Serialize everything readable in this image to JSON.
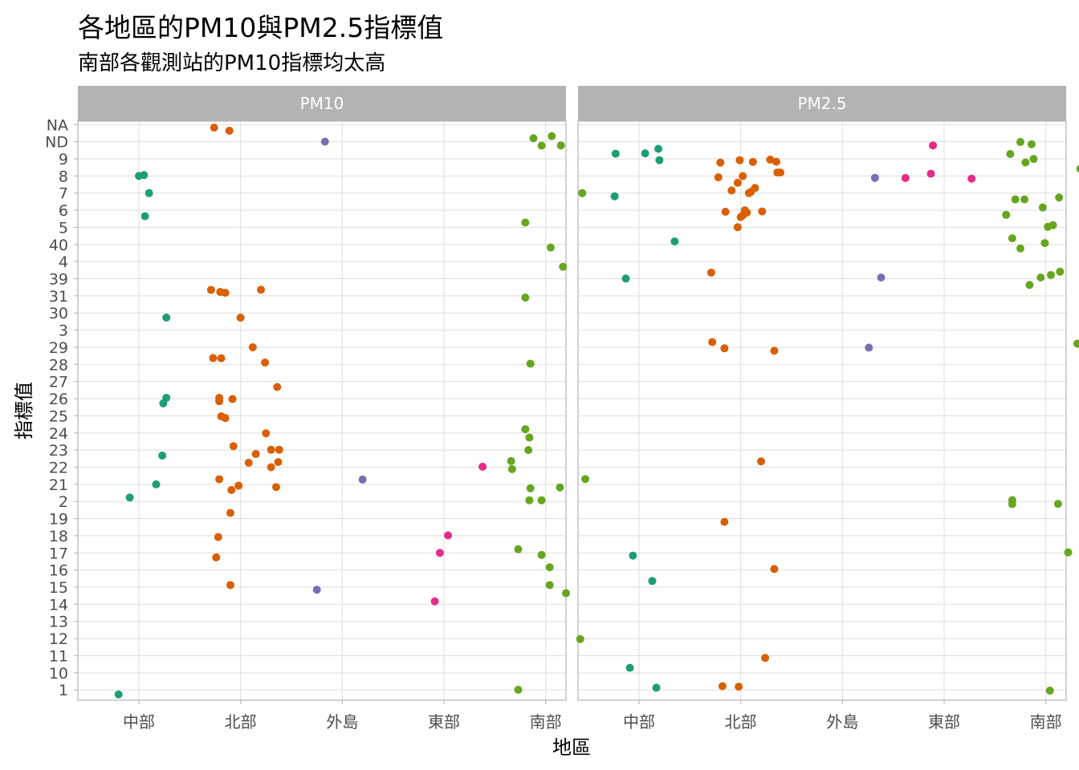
{
  "chart_data": {
    "type": "scatter",
    "title": "各地區的PM10與PM2.5指標值",
    "subtitle": "南部各觀測站的PM10指標均太高",
    "xlabel": "地區",
    "ylabel": "指標值",
    "x_categories": [
      "中部",
      "北部",
      "外島",
      "東部",
      "南部"
    ],
    "y_categories": [
      "1",
      "10",
      "11",
      "12",
      "13",
      "14",
      "15",
      "16",
      "17",
      "18",
      "19",
      "2",
      "21",
      "22",
      "23",
      "24",
      "25",
      "26",
      "27",
      "28",
      "29",
      "3",
      "30",
      "31",
      "39",
      "4",
      "40",
      "5",
      "6",
      "7",
      "8",
      "9",
      "ND",
      "NA"
    ],
    "facets": [
      "PM10",
      "PM2.5"
    ],
    "region_colors": {
      "中部": "#1b9e77",
      "北部": "#d95f02",
      "外島": "#7570b3",
      "東部": "#e7298a",
      "南部": "#66a61e"
    },
    "grid": true,
    "legend": "none",
    "points": [
      {
        "facet": "PM10",
        "region": "中部",
        "x": 0.8,
        "y": 0.74
      },
      {
        "facet": "PM10",
        "region": "中部",
        "x": 0.91,
        "y": 12.23
      },
      {
        "facet": "PM10",
        "region": "中部",
        "x": 1.0,
        "y": 31.0
      },
      {
        "facet": "PM10",
        "region": "中部",
        "x": 1.1,
        "y": 30.0
      },
      {
        "facet": "PM10",
        "region": "中部",
        "x": 1.05,
        "y": 31.05
      },
      {
        "facet": "PM10",
        "region": "中部",
        "x": 1.06,
        "y": 28.65
      },
      {
        "facet": "PM10",
        "region": "中部",
        "x": 1.27,
        "y": 22.73
      },
      {
        "facet": "PM10",
        "region": "中部",
        "x": 1.27,
        "y": 18.05
      },
      {
        "facet": "PM10",
        "region": "中部",
        "x": 1.24,
        "y": 17.73
      },
      {
        "facet": "PM10",
        "region": "中部",
        "x": 1.23,
        "y": 14.68
      },
      {
        "facet": "PM10",
        "region": "中部",
        "x": 1.17,
        "y": 13.0
      },
      {
        "facet": "PM10",
        "region": "北部",
        "x": 1.74,
        "y": 33.82
      },
      {
        "facet": "PM10",
        "region": "北部",
        "x": 1.89,
        "y": 33.64
      },
      {
        "facet": "PM10",
        "region": "北部",
        "x": 1.71,
        "y": 24.35
      },
      {
        "facet": "PM10",
        "region": "北部",
        "x": 1.8,
        "y": 24.23
      },
      {
        "facet": "PM10",
        "region": "北部",
        "x": 1.85,
        "y": 24.18
      },
      {
        "facet": "PM10",
        "region": "北部",
        "x": 2.2,
        "y": 24.36
      },
      {
        "facet": "PM10",
        "region": "北部",
        "x": 2.0,
        "y": 22.73
      },
      {
        "facet": "PM10",
        "region": "北部",
        "x": 2.12,
        "y": 21.0
      },
      {
        "facet": "PM10",
        "region": "北部",
        "x": 1.73,
        "y": 20.37
      },
      {
        "facet": "PM10",
        "region": "北部",
        "x": 1.81,
        "y": 20.36
      },
      {
        "facet": "PM10",
        "region": "北部",
        "x": 2.24,
        "y": 20.11
      },
      {
        "facet": "PM10",
        "region": "北部",
        "x": 2.36,
        "y": 18.68
      },
      {
        "facet": "PM10",
        "region": "北部",
        "x": 1.79,
        "y": 18.05
      },
      {
        "facet": "PM10",
        "region": "北部",
        "x": 1.79,
        "y": 17.85
      },
      {
        "facet": "PM10",
        "region": "北部",
        "x": 1.92,
        "y": 17.98
      },
      {
        "facet": "PM10",
        "region": "北部",
        "x": 1.81,
        "y": 16.97
      },
      {
        "facet": "PM10",
        "region": "北部",
        "x": 1.85,
        "y": 16.87
      },
      {
        "facet": "PM10",
        "region": "北部",
        "x": 2.25,
        "y": 15.98
      },
      {
        "facet": "PM10",
        "region": "北部",
        "x": 1.93,
        "y": 15.23
      },
      {
        "facet": "PM10",
        "region": "北部",
        "x": 2.3,
        "y": 15.02
      },
      {
        "facet": "PM10",
        "region": "北部",
        "x": 2.38,
        "y": 15.02
      },
      {
        "facet": "PM10",
        "region": "北部",
        "x": 2.15,
        "y": 14.77
      },
      {
        "facet": "PM10",
        "region": "北部",
        "x": 2.08,
        "y": 14.26
      },
      {
        "facet": "PM10",
        "region": "北部",
        "x": 2.37,
        "y": 14.3
      },
      {
        "facet": "PM10",
        "region": "北部",
        "x": 2.3,
        "y": 14.0
      },
      {
        "facet": "PM10",
        "region": "北部",
        "x": 1.79,
        "y": 13.3
      },
      {
        "facet": "PM10",
        "region": "北部",
        "x": 1.98,
        "y": 12.92
      },
      {
        "facet": "PM10",
        "region": "北部",
        "x": 1.91,
        "y": 12.67
      },
      {
        "facet": "PM10",
        "region": "北部",
        "x": 2.35,
        "y": 12.84
      },
      {
        "facet": "PM10",
        "region": "北部",
        "x": 1.9,
        "y": 11.33
      },
      {
        "facet": "PM10",
        "region": "北部",
        "x": 1.78,
        "y": 9.92
      },
      {
        "facet": "PM10",
        "region": "北部",
        "x": 1.76,
        "y": 8.74
      },
      {
        "facet": "PM10",
        "region": "北部",
        "x": 1.9,
        "y": 7.12
      },
      {
        "facet": "PM10",
        "region": "外島",
        "x": 2.83,
        "y": 33.0
      },
      {
        "facet": "PM10",
        "region": "外島",
        "x": 3.2,
        "y": 13.28
      },
      {
        "facet": "PM10",
        "region": "外島",
        "x": 2.75,
        "y": 6.85
      },
      {
        "facet": "PM10",
        "region": "東部",
        "x": 4.38,
        "y": 14.03
      },
      {
        "facet": "PM10",
        "region": "東部",
        "x": 4.04,
        "y": 10.02
      },
      {
        "facet": "PM10",
        "region": "東部",
        "x": 3.96,
        "y": 9.0
      },
      {
        "facet": "PM10",
        "region": "東部",
        "x": 3.91,
        "y": 6.17
      },
      {
        "facet": "PM10",
        "region": "南部",
        "x": 4.88,
        "y": 33.2
      },
      {
        "facet": "PM10",
        "region": "南部",
        "x": 5.06,
        "y": 33.32
      },
      {
        "facet": "PM10",
        "region": "南部",
        "x": 4.96,
        "y": 32.77
      },
      {
        "facet": "PM10",
        "region": "南部",
        "x": 5.15,
        "y": 32.78
      },
      {
        "facet": "PM10",
        "region": "南部",
        "x": 5.36,
        "y": 30.0
      },
      {
        "facet": "PM10",
        "region": "南部",
        "x": 4.8,
        "y": 28.28
      },
      {
        "facet": "PM10",
        "region": "南部",
        "x": 5.05,
        "y": 26.82
      },
      {
        "facet": "PM10",
        "region": "南部",
        "x": 5.17,
        "y": 25.7
      },
      {
        "facet": "PM10",
        "region": "南部",
        "x": 4.8,
        "y": 23.9
      },
      {
        "facet": "PM10",
        "region": "南部",
        "x": 4.85,
        "y": 20.04
      },
      {
        "facet": "PM10",
        "region": "南部",
        "x": 4.8,
        "y": 16.22
      },
      {
        "facet": "PM10",
        "region": "南部",
        "x": 4.84,
        "y": 15.73
      },
      {
        "facet": "PM10",
        "region": "南部",
        "x": 4.83,
        "y": 15.0
      },
      {
        "facet": "PM10",
        "region": "南部",
        "x": 4.66,
        "y": 14.36
      },
      {
        "facet": "PM10",
        "region": "南部",
        "x": 4.67,
        "y": 13.89
      },
      {
        "facet": "PM10",
        "region": "南部",
        "x": 4.85,
        "y": 12.77
      },
      {
        "facet": "PM10",
        "region": "南部",
        "x": 5.39,
        "y": 13.31
      },
      {
        "facet": "PM10",
        "region": "南部",
        "x": 5.14,
        "y": 12.82
      },
      {
        "facet": "PM10",
        "region": "南部",
        "x": 4.84,
        "y": 12.07
      },
      {
        "facet": "PM10",
        "region": "南部",
        "x": 4.96,
        "y": 12.07
      },
      {
        "facet": "PM10",
        "region": "南部",
        "x": 4.73,
        "y": 9.21
      },
      {
        "facet": "PM10",
        "region": "南部",
        "x": 4.96,
        "y": 8.88
      },
      {
        "facet": "PM10",
        "region": "南部",
        "x": 5.04,
        "y": 8.16
      },
      {
        "facet": "PM10",
        "region": "南部",
        "x": 5.04,
        "y": 7.12
      },
      {
        "facet": "PM10",
        "region": "南部",
        "x": 5.2,
        "y": 6.65
      },
      {
        "facet": "PM10",
        "region": "南部",
        "x": 5.34,
        "y": 3.97
      },
      {
        "facet": "PM10",
        "region": "南部",
        "x": 4.73,
        "y": 1.01
      },
      {
        "facet": "PM2.5",
        "region": "中部",
        "x": 0.77,
        "y": 32.3
      },
      {
        "facet": "PM2.5",
        "region": "中部",
        "x": 1.06,
        "y": 32.32
      },
      {
        "facet": "PM2.5",
        "region": "中部",
        "x": 1.19,
        "y": 32.58
      },
      {
        "facet": "PM2.5",
        "region": "中部",
        "x": 1.2,
        "y": 31.92
      },
      {
        "facet": "PM2.5",
        "region": "中部",
        "x": 0.76,
        "y": 29.81
      },
      {
        "facet": "PM2.5",
        "region": "中部",
        "x": 1.35,
        "y": 27.18
      },
      {
        "facet": "PM2.5",
        "region": "中部",
        "x": 0.87,
        "y": 25.01
      },
      {
        "facet": "PM2.5",
        "region": "中部",
        "x": 0.94,
        "y": 8.84
      },
      {
        "facet": "PM2.5",
        "region": "中部",
        "x": 1.13,
        "y": 7.36
      },
      {
        "facet": "PM2.5",
        "region": "中部",
        "x": 0.91,
        "y": 2.29
      },
      {
        "facet": "PM2.5",
        "region": "中部",
        "x": 1.17,
        "y": 1.13
      },
      {
        "facet": "PM2.5",
        "region": "北部",
        "x": 1.8,
        "y": 31.78
      },
      {
        "facet": "PM2.5",
        "region": "北部",
        "x": 1.99,
        "y": 31.92
      },
      {
        "facet": "PM2.5",
        "region": "北部",
        "x": 2.12,
        "y": 31.82
      },
      {
        "facet": "PM2.5",
        "region": "北部",
        "x": 2.35,
        "y": 31.83
      },
      {
        "facet": "PM2.5",
        "region": "北部",
        "x": 2.29,
        "y": 31.95
      },
      {
        "facet": "PM2.5",
        "region": "北部",
        "x": 2.36,
        "y": 31.2
      },
      {
        "facet": "PM2.5",
        "region": "北部",
        "x": 2.39,
        "y": 31.2
      },
      {
        "facet": "PM2.5",
        "region": "北部",
        "x": 1.78,
        "y": 30.92
      },
      {
        "facet": "PM2.5",
        "region": "北部",
        "x": 2.02,
        "y": 30.99
      },
      {
        "facet": "PM2.5",
        "region": "北部",
        "x": 1.97,
        "y": 30.6
      },
      {
        "facet": "PM2.5",
        "region": "北部",
        "x": 1.91,
        "y": 30.15
      },
      {
        "facet": "PM2.5",
        "region": "北部",
        "x": 2.14,
        "y": 30.3
      },
      {
        "facet": "PM2.5",
        "region": "北部",
        "x": 2.08,
        "y": 30.0
      },
      {
        "facet": "PM2.5",
        "region": "北部",
        "x": 2.1,
        "y": 30.07
      },
      {
        "facet": "PM2.5",
        "region": "北部",
        "x": 1.85,
        "y": 28.91
      },
      {
        "facet": "PM2.5",
        "region": "北部",
        "x": 2.04,
        "y": 28.99
      },
      {
        "facet": "PM2.5",
        "region": "北部",
        "x": 2.06,
        "y": 28.86
      },
      {
        "facet": "PM2.5",
        "region": "北部",
        "x": 2.21,
        "y": 28.93
      },
      {
        "facet": "PM2.5",
        "region": "北部",
        "x": 2.02,
        "y": 28.7
      },
      {
        "facet": "PM2.5",
        "region": "北部",
        "x": 2.0,
        "y": 28.6
      },
      {
        "facet": "PM2.5",
        "region": "北部",
        "x": 1.97,
        "y": 28.01
      },
      {
        "facet": "PM2.5",
        "region": "北部",
        "x": 1.71,
        "y": 25.36
      },
      {
        "facet": "PM2.5",
        "region": "北部",
        "x": 1.72,
        "y": 21.3
      },
      {
        "facet": "PM2.5",
        "region": "北部",
        "x": 1.84,
        "y": 20.94
      },
      {
        "facet": "PM2.5",
        "region": "北部",
        "x": 2.33,
        "y": 20.8
      },
      {
        "facet": "PM2.5",
        "region": "北部",
        "x": 2.2,
        "y": 14.34
      },
      {
        "facet": "PM2.5",
        "region": "北部",
        "x": 1.84,
        "y": 10.81
      },
      {
        "facet": "PM2.5",
        "region": "北部",
        "x": 2.33,
        "y": 8.06
      },
      {
        "facet": "PM2.5",
        "region": "北部",
        "x": 2.24,
        "y": 2.87
      },
      {
        "facet": "PM2.5",
        "region": "北部",
        "x": 1.82,
        "y": 1.22
      },
      {
        "facet": "PM2.5",
        "region": "北部",
        "x": 1.98,
        "y": 1.19
      },
      {
        "facet": "PM2.5",
        "region": "外島",
        "x": 3.32,
        "y": 30.89
      },
      {
        "facet": "PM2.5",
        "region": "外島",
        "x": 3.38,
        "y": 25.07
      },
      {
        "facet": "PM2.5",
        "region": "外島",
        "x": 3.26,
        "y": 20.98
      },
      {
        "facet": "PM2.5",
        "region": "東部",
        "x": 3.62,
        "y": 30.88
      },
      {
        "facet": "PM2.5",
        "region": "東部",
        "x": 3.89,
        "y": 32.78
      },
      {
        "facet": "PM2.5",
        "region": "東部",
        "x": 3.87,
        "y": 31.13
      },
      {
        "facet": "PM2.5",
        "region": "東部",
        "x": 4.27,
        "y": 30.84
      },
      {
        "facet": "PM2.5",
        "region": "南部",
        "x": 4.65,
        "y": 32.28
      },
      {
        "facet": "PM2.5",
        "region": "南部",
        "x": 4.75,
        "y": 32.98
      },
      {
        "facet": "PM2.5",
        "region": "南部",
        "x": 4.86,
        "y": 32.85
      },
      {
        "facet": "PM2.5",
        "region": "南部",
        "x": 5.38,
        "y": 32.38
      },
      {
        "facet": "PM2.5",
        "region": "南部",
        "x": 4.8,
        "y": 31.79
      },
      {
        "facet": "PM2.5",
        "region": "南部",
        "x": 4.88,
        "y": 31.99
      },
      {
        "facet": "PM2.5",
        "region": "南部",
        "x": 5.34,
        "y": 31.42
      },
      {
        "facet": "PM2.5",
        "region": "南部",
        "x": 4.7,
        "y": 29.63
      },
      {
        "facet": "PM2.5",
        "region": "南部",
        "x": 4.79,
        "y": 29.63
      },
      {
        "facet": "PM2.5",
        "region": "南部",
        "x": 5.13,
        "y": 29.74
      },
      {
        "facet": "PM2.5",
        "region": "南部",
        "x": 4.97,
        "y": 29.16
      },
      {
        "facet": "PM2.5",
        "region": "南部",
        "x": 4.61,
        "y": 28.73
      },
      {
        "facet": "PM2.5",
        "region": "南部",
        "x": 5.07,
        "y": 28.13
      },
      {
        "facet": "PM2.5",
        "region": "南部",
        "x": 5.02,
        "y": 28.03
      },
      {
        "facet": "PM2.5",
        "region": "南部",
        "x": 4.67,
        "y": 27.36
      },
      {
        "facet": "PM2.5",
        "region": "南部",
        "x": 4.75,
        "y": 26.77
      },
      {
        "facet": "PM2.5",
        "region": "南部",
        "x": 4.99,
        "y": 27.08
      },
      {
        "facet": "PM2.5",
        "region": "南部",
        "x": 5.14,
        "y": 25.41
      },
      {
        "facet": "PM2.5",
        "region": "南部",
        "x": 5.05,
        "y": 25.22
      },
      {
        "facet": "PM2.5",
        "region": "南部",
        "x": 4.95,
        "y": 25.07
      },
      {
        "facet": "PM2.5",
        "region": "南部",
        "x": 4.84,
        "y": 24.64
      },
      {
        "facet": "PM2.5",
        "region": "南部",
        "x": 5.31,
        "y": 21.21
      },
      {
        "facet": "PM2.5",
        "region": "南部",
        "x": 4.67,
        "y": 12.08
      },
      {
        "facet": "PM2.5",
        "region": "南部",
        "x": 4.67,
        "y": 11.85
      },
      {
        "facet": "PM2.5",
        "region": "南部",
        "x": 5.12,
        "y": 11.86
      },
      {
        "facet": "PM2.5",
        "region": "南部",
        "x": 5.22,
        "y": 9.03
      },
      {
        "facet": "PM2.5",
        "region": "南部",
        "x": 5.04,
        "y": 0.96
      }
    ]
  }
}
